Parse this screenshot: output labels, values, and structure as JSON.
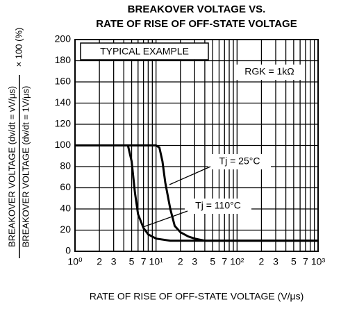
{
  "chart_data": {
    "type": "line",
    "title": [
      "BREAKOVER VOLTAGE VS.",
      "RATE OF RISE OF OFF-STATE VOLTAGE"
    ],
    "y_label": {
      "numerator": "BREAKOVER VOLTAGE (dv/dt = vV/μs)",
      "denominator": "BREAKOVER VOLTAGE (dv/dt = 1V/μs)",
      "suffix": "× 100 (%)"
    },
    "x_label": "RATE OF RISE OF OFF-STATE VOLTAGE  (V/μs)",
    "annotations": [
      "TYPICAL EXAMPLE",
      "RGK = 1kΩ"
    ],
    "log_x": true,
    "xlim": [
      1,
      1000
    ],
    "ylim": [
      0,
      200
    ],
    "xticks": [
      {
        "value": 1,
        "label": "10⁰"
      },
      2,
      3,
      5,
      7,
      {
        "value": 10,
        "label": "10¹"
      },
      {
        "value": 20,
        "label": "2"
      },
      {
        "value": 30,
        "label": "3"
      },
      {
        "value": 50,
        "label": "5"
      },
      {
        "value": 70,
        "label": "7"
      },
      {
        "value": 100,
        "label": "10²"
      },
      {
        "value": 200,
        "label": "2"
      },
      {
        "value": 300,
        "label": "3"
      },
      {
        "value": 500,
        "label": "5"
      },
      {
        "value": 700,
        "label": "7"
      },
      {
        "value": 1000,
        "label": "10³"
      }
    ],
    "xgrid": [
      1,
      2,
      3,
      4,
      5,
      6,
      7,
      8,
      9,
      10,
      20,
      30,
      40,
      50,
      60,
      70,
      80,
      90,
      100,
      200,
      300,
      400,
      500,
      600,
      700,
      800,
      900,
      1000
    ],
    "yticks": [
      0,
      20,
      40,
      60,
      80,
      100,
      120,
      140,
      160,
      180,
      200
    ],
    "grid": true,
    "series": [
      {
        "name": "Tj = 25°C",
        "color": "#000000",
        "x": [
          1,
          5,
          10,
          11,
          12,
          13,
          15,
          17,
          20,
          25,
          30,
          40,
          50,
          1000
        ],
        "values": [
          100,
          100,
          100,
          98,
          85,
          65,
          40,
          24,
          18,
          14,
          12,
          10,
          10,
          10
        ]
      },
      {
        "name": "Tj = 110°C",
        "color": "#000000",
        "x": [
          1,
          3,
          4.5,
          5,
          5.5,
          6,
          7,
          8,
          10,
          15,
          20,
          50,
          100,
          1000
        ],
        "values": [
          100,
          100,
          100,
          85,
          55,
          35,
          22,
          16,
          12,
          10,
          10,
          10,
          10,
          10
        ]
      }
    ]
  }
}
